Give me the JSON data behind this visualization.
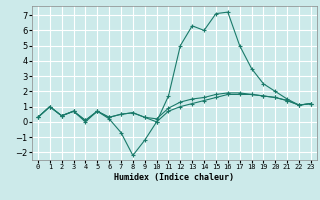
{
  "title": "",
  "xlabel": "Humidex (Indice chaleur)",
  "ylabel": "",
  "background_color": "#cceaea",
  "grid_color": "#ffffff",
  "line_color": "#1a7a6a",
  "xlim": [
    -0.5,
    23.5
  ],
  "ylim": [
    -2.5,
    7.6
  ],
  "xticks": [
    0,
    1,
    2,
    3,
    4,
    5,
    6,
    7,
    8,
    9,
    10,
    11,
    12,
    13,
    14,
    15,
    16,
    17,
    18,
    19,
    20,
    21,
    22,
    23
  ],
  "yticks": [
    -2,
    -1,
    0,
    1,
    2,
    3,
    4,
    5,
    6,
    7
  ],
  "series": [
    [
      0.3,
      1.0,
      0.4,
      0.7,
      0.0,
      0.7,
      0.2,
      -0.7,
      -2.2,
      -1.2,
      0.0,
      1.7,
      5.0,
      6.3,
      6.0,
      7.1,
      7.2,
      5.0,
      3.5,
      2.5,
      2.0,
      1.5,
      1.1,
      1.2
    ],
    [
      0.3,
      1.0,
      0.4,
      0.7,
      0.1,
      0.7,
      0.3,
      0.5,
      0.6,
      0.3,
      0.0,
      0.7,
      1.0,
      1.2,
      1.4,
      1.6,
      1.8,
      1.8,
      1.8,
      1.7,
      1.6,
      1.4,
      1.1,
      1.2
    ],
    [
      0.3,
      1.0,
      0.4,
      0.7,
      0.1,
      0.7,
      0.3,
      0.5,
      0.6,
      0.3,
      0.2,
      0.9,
      1.3,
      1.5,
      1.6,
      1.8,
      1.9,
      1.9,
      1.8,
      1.7,
      1.6,
      1.4,
      1.1,
      1.2
    ]
  ]
}
